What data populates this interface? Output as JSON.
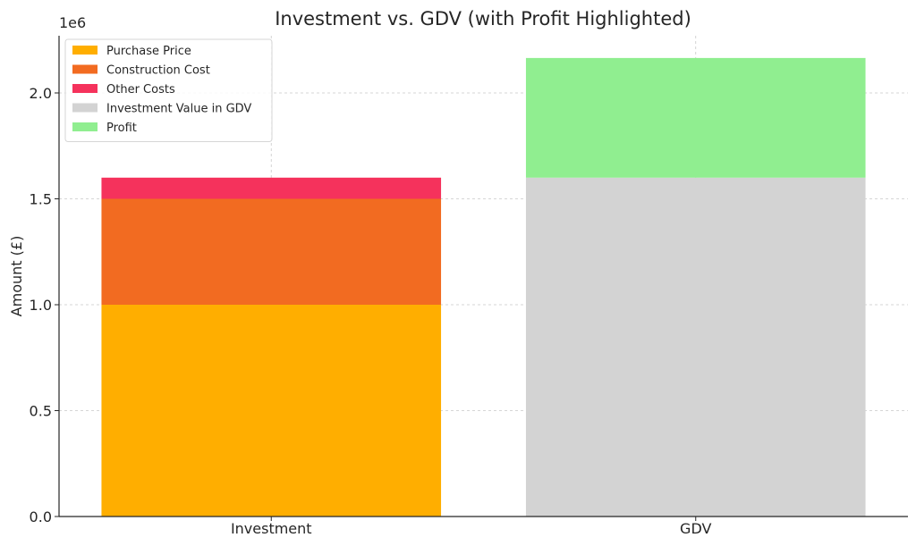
{
  "chart_data": {
    "type": "bar",
    "stacked": true,
    "title": "Investment vs. GDV (with Profit Highlighted)",
    "xlabel": "",
    "ylabel": "Amount (£)",
    "y_offset_label": "1e6",
    "categories": [
      "Investment",
      "GDV"
    ],
    "ylim": [
      0,
      2270000
    ],
    "y_ticks": [
      0,
      500000,
      1000000,
      1500000,
      2000000
    ],
    "y_tick_labels": [
      "0.0",
      "0.5",
      "1.0",
      "1.5",
      "2.0"
    ],
    "grid": true,
    "legend_position": "top-left",
    "series": [
      {
        "name": "Purchase Price",
        "color": "#FFAE00",
        "values": [
          1000000,
          0
        ]
      },
      {
        "name": "Construction Cost",
        "color": "#F26B21",
        "values": [
          500000,
          0
        ]
      },
      {
        "name": "Other Costs",
        "color": "#F5325C",
        "values": [
          100000,
          0
        ]
      },
      {
        "name": "Investment Value in GDV",
        "color": "#D3D3D3",
        "values": [
          0,
          1600000
        ]
      },
      {
        "name": "Profit",
        "color": "#90EE90",
        "values": [
          0,
          565000
        ]
      }
    ]
  }
}
